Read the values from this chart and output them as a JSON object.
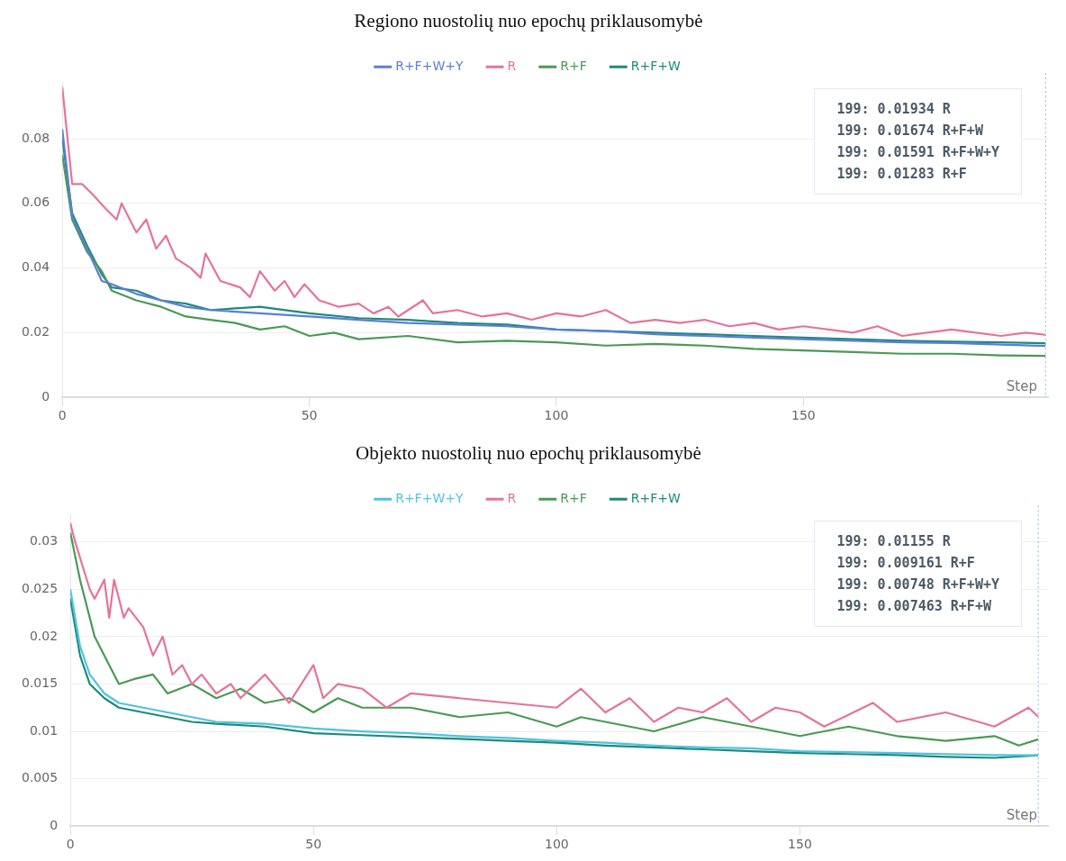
{
  "chart_data": [
    {
      "type": "line",
      "title": "Regiono nuostolių nuo epochų priklausomybė",
      "xlabel": "Step",
      "legend": "top",
      "grid": "y",
      "marker": "none",
      "line_style": "solid",
      "xlim": [
        0,
        199.5
      ],
      "xticks": [
        0,
        50,
        100,
        150
      ],
      "ylim": [
        0,
        0.0975
      ],
      "yticks": [
        0,
        0.02,
        0.04,
        0.06,
        0.08
      ],
      "series": [
        {
          "name": "R+F+W+Y",
          "color": "#5b7fd6",
          "x": [
            0,
            2,
            5,
            8,
            10,
            15,
            20,
            25,
            30,
            40,
            50,
            60,
            70,
            80,
            90,
            100,
            110,
            120,
            130,
            140,
            150,
            160,
            170,
            180,
            190,
            199
          ],
          "values": [
            0.083,
            0.056,
            0.046,
            0.036,
            0.035,
            0.032,
            0.03,
            0.028,
            0.027,
            0.026,
            0.025,
            0.024,
            0.023,
            0.0225,
            0.022,
            0.021,
            0.0205,
            0.0195,
            0.019,
            0.0185,
            0.018,
            0.0175,
            0.017,
            0.0168,
            0.0163,
            0.01591
          ]
        },
        {
          "name": "R",
          "color": "#e5739a",
          "x": [
            0,
            2,
            4,
            6,
            9,
            11,
            12,
            15,
            17,
            19,
            21,
            23,
            26,
            28,
            29,
            32,
            36,
            38,
            40,
            43,
            45,
            47,
            49,
            52,
            56,
            60,
            63,
            66,
            68,
            73,
            75,
            80,
            85,
            90,
            95,
            100,
            105,
            110,
            115,
            120,
            125,
            130,
            135,
            140,
            145,
            150,
            160,
            165,
            170,
            180,
            190,
            195,
            199
          ],
          "values": [
            0.096,
            0.066,
            0.066,
            0.063,
            0.058,
            0.055,
            0.06,
            0.051,
            0.055,
            0.046,
            0.05,
            0.043,
            0.04,
            0.037,
            0.0445,
            0.036,
            0.034,
            0.031,
            0.039,
            0.033,
            0.036,
            0.031,
            0.035,
            0.03,
            0.028,
            0.029,
            0.026,
            0.028,
            0.025,
            0.03,
            0.026,
            0.027,
            0.025,
            0.026,
            0.024,
            0.026,
            0.025,
            0.027,
            0.023,
            0.024,
            0.023,
            0.024,
            0.022,
            0.023,
            0.021,
            0.022,
            0.02,
            0.022,
            0.019,
            0.021,
            0.019,
            0.02,
            0.01934
          ]
        },
        {
          "name": "R+F",
          "color": "#4a9a55",
          "x": [
            0,
            2,
            5,
            8,
            10,
            15,
            20,
            25,
            30,
            35,
            40,
            45,
            50,
            55,
            60,
            70,
            80,
            90,
            100,
            110,
            120,
            130,
            140,
            150,
            160,
            170,
            180,
            190,
            199
          ],
          "values": [
            0.075,
            0.055,
            0.045,
            0.039,
            0.033,
            0.03,
            0.028,
            0.025,
            0.024,
            0.023,
            0.021,
            0.022,
            0.019,
            0.02,
            0.018,
            0.019,
            0.017,
            0.0175,
            0.017,
            0.016,
            0.0165,
            0.016,
            0.015,
            0.0145,
            0.014,
            0.0135,
            0.0135,
            0.013,
            0.01283
          ]
        },
        {
          "name": "R+F+W",
          "color": "#1f8a7a",
          "x": [
            0,
            2,
            5,
            8,
            10,
            15,
            20,
            25,
            30,
            40,
            50,
            60,
            70,
            80,
            90,
            100,
            110,
            120,
            130,
            140,
            150,
            160,
            170,
            180,
            190,
            199
          ],
          "values": [
            0.08,
            0.057,
            0.047,
            0.038,
            0.034,
            0.033,
            0.03,
            0.029,
            0.027,
            0.028,
            0.026,
            0.0245,
            0.024,
            0.023,
            0.0225,
            0.021,
            0.0205,
            0.02,
            0.0195,
            0.019,
            0.0185,
            0.018,
            0.0175,
            0.0172,
            0.017,
            0.01674
          ]
        }
      ],
      "ref_lines": [
        {
          "axis": "x",
          "value": 199,
          "color": "#8fb4e0",
          "line_style": "dotted"
        }
      ],
      "annotations": [
        "199: 0.01934 R",
        "199: 0.01674 R+F+W",
        "199: 0.01591 R+F+W+Y",
        "199: 0.01283 R+F"
      ]
    },
    {
      "type": "line",
      "title": "Objekto nuostolių nuo epochų priklausomybė",
      "xlabel": "Step",
      "legend": "top",
      "grid": "y",
      "marker": "none",
      "line_style": "solid",
      "xlim": [
        0,
        201
      ],
      "xticks": [
        0,
        50,
        100,
        150
      ],
      "ylim": [
        0,
        0.0329
      ],
      "yticks": [
        0,
        0.005,
        0.01,
        0.015,
        0.02,
        0.025,
        0.03
      ],
      "series": [
        {
          "name": "R+F+W+Y",
          "color": "#4fc3e0",
          "x": [
            0,
            2,
            4,
            7,
            10,
            15,
            20,
            25,
            30,
            40,
            50,
            60,
            70,
            80,
            90,
            100,
            110,
            120,
            130,
            140,
            150,
            160,
            170,
            180,
            190,
            199
          ],
          "values": [
            0.025,
            0.019,
            0.016,
            0.014,
            0.013,
            0.0125,
            0.012,
            0.0115,
            0.011,
            0.0108,
            0.0103,
            0.01,
            0.0098,
            0.0095,
            0.0093,
            0.009,
            0.0088,
            0.0085,
            0.0083,
            0.0082,
            0.0079,
            0.0078,
            0.0077,
            0.0076,
            0.0075,
            0.00748
          ]
        },
        {
          "name": "R",
          "color": "#e5739a",
          "x": [
            0,
            1,
            4,
            5,
            7,
            8,
            9,
            11,
            12,
            15,
            17,
            19,
            21,
            23,
            25,
            27,
            30,
            33,
            35,
            40,
            45,
            50,
            52,
            55,
            60,
            65,
            70,
            80,
            90,
            100,
            105,
            110,
            115,
            120,
            125,
            130,
            135,
            140,
            145,
            150,
            155,
            165,
            170,
            180,
            190,
            197,
            199
          ],
          "values": [
            0.032,
            0.03,
            0.025,
            0.024,
            0.026,
            0.022,
            0.026,
            0.022,
            0.023,
            0.021,
            0.018,
            0.02,
            0.016,
            0.017,
            0.015,
            0.016,
            0.014,
            0.015,
            0.0135,
            0.016,
            0.013,
            0.017,
            0.0135,
            0.015,
            0.0145,
            0.0125,
            0.014,
            0.0135,
            0.013,
            0.0125,
            0.0145,
            0.012,
            0.0135,
            0.011,
            0.0125,
            0.012,
            0.0135,
            0.011,
            0.0125,
            0.012,
            0.0105,
            0.013,
            0.011,
            0.012,
            0.0105,
            0.0125,
            0.01155
          ]
        },
        {
          "name": "R+F",
          "color": "#4a9a55",
          "x": [
            0,
            2,
            5,
            8,
            10,
            13,
            17,
            20,
            25,
            30,
            35,
            40,
            45,
            50,
            55,
            60,
            70,
            80,
            90,
            100,
            105,
            110,
            120,
            130,
            140,
            150,
            160,
            170,
            180,
            190,
            195,
            199
          ],
          "values": [
            0.031,
            0.026,
            0.02,
            0.017,
            0.015,
            0.0155,
            0.016,
            0.014,
            0.015,
            0.0135,
            0.0145,
            0.013,
            0.0135,
            0.012,
            0.0135,
            0.0125,
            0.0125,
            0.0115,
            0.012,
            0.0105,
            0.0115,
            0.011,
            0.01,
            0.0115,
            0.0105,
            0.0095,
            0.0105,
            0.0095,
            0.009,
            0.0095,
            0.0085,
            0.009161
          ]
        },
        {
          "name": "R+F+W",
          "color": "#1f8a7a",
          "x": [
            0,
            2,
            4,
            7,
            10,
            15,
            20,
            25,
            30,
            40,
            50,
            60,
            70,
            80,
            90,
            100,
            110,
            120,
            130,
            140,
            150,
            160,
            170,
            180,
            190,
            199
          ],
          "values": [
            0.024,
            0.018,
            0.015,
            0.0135,
            0.0125,
            0.012,
            0.0115,
            0.011,
            0.0108,
            0.0105,
            0.0098,
            0.0096,
            0.0094,
            0.0092,
            0.009,
            0.0088,
            0.0085,
            0.0083,
            0.0081,
            0.0079,
            0.0077,
            0.0076,
            0.0075,
            0.0073,
            0.0072,
            0.007463
          ]
        }
      ],
      "ref_lines": [
        {
          "axis": "x",
          "value": 199,
          "color": "#8fb4e0",
          "line_style": "dotted"
        }
      ],
      "annotations": [
        "199: 0.01155 R",
        "199: 0.009161 R+F",
        "199: 0.00748 R+F+W+Y",
        "199: 0.007463 R+F+W"
      ]
    }
  ]
}
